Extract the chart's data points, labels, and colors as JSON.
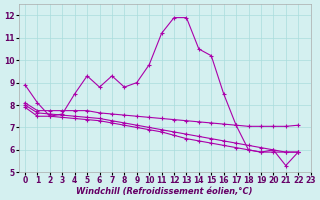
{
  "title": "",
  "xlabel": "Windchill (Refroidissement éolien,°C)",
  "ylabel": "",
  "background_color": "#d4f0f0",
  "line_color": "#aa00aa",
  "grid_color": "#aadddd",
  "xlim": [
    -0.5,
    23
  ],
  "ylim": [
    5,
    12.5
  ],
  "yticks": [
    5,
    6,
    7,
    8,
    9,
    10,
    11,
    12
  ],
  "xticks": [
    0,
    1,
    2,
    3,
    4,
    5,
    6,
    7,
    8,
    9,
    10,
    11,
    12,
    13,
    14,
    15,
    16,
    17,
    18,
    19,
    20,
    21,
    22,
    23
  ],
  "series": [
    [
      8.9,
      8.1,
      7.5,
      7.6,
      8.5,
      9.3,
      8.8,
      9.3,
      8.8,
      9.0,
      9.8,
      11.2,
      11.9,
      11.9,
      10.5,
      10.2,
      8.5,
      7.1,
      6.0,
      5.9,
      6.0,
      5.3,
      5.9
    ],
    [
      8.1,
      7.75,
      7.75,
      7.75,
      7.75,
      7.75,
      7.65,
      7.6,
      7.55,
      7.5,
      7.45,
      7.4,
      7.35,
      7.3,
      7.25,
      7.2,
      7.15,
      7.1,
      7.05,
      7.05,
      7.05,
      7.05,
      7.1
    ],
    [
      8.0,
      7.65,
      7.6,
      7.55,
      7.5,
      7.45,
      7.4,
      7.3,
      7.2,
      7.1,
      7.0,
      6.9,
      6.8,
      6.7,
      6.6,
      6.5,
      6.4,
      6.3,
      6.2,
      6.1,
      6.0,
      5.9,
      5.9
    ],
    [
      7.9,
      7.5,
      7.5,
      7.45,
      7.4,
      7.35,
      7.3,
      7.2,
      7.1,
      7.0,
      6.9,
      6.8,
      6.65,
      6.5,
      6.4,
      6.3,
      6.2,
      6.1,
      6.0,
      5.9,
      5.9,
      5.9,
      5.9
    ]
  ],
  "series_has_markers": [
    true,
    true,
    true,
    true
  ],
  "axis_fontsize": 6.0,
  "tick_fontsize": 5.5
}
